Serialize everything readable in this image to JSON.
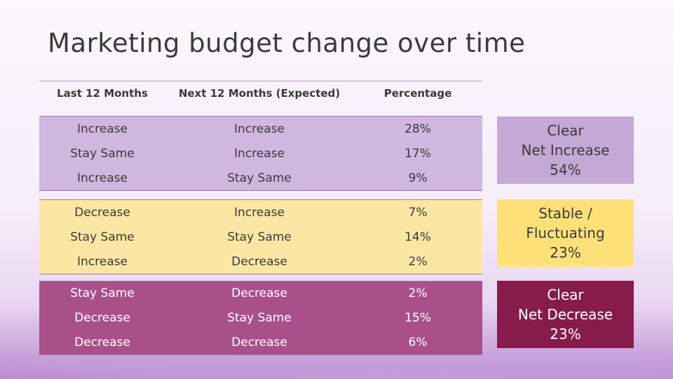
{
  "title": "Marketing budget change over time",
  "colors": {
    "increase_group": "#cfb7df",
    "stable_group": "#fbe6a4",
    "decrease_group": "#a9508a",
    "increase_box": "#c4a8d6",
    "stable_box": "#fde178",
    "decrease_box": "#871c4c"
  },
  "table": {
    "headers": [
      "Last 12 Months",
      "Next 12 Months (Expected)",
      "Percentage"
    ],
    "groups": [
      {
        "rows": [
          [
            "Increase",
            "Increase",
            "28%"
          ],
          [
            "Stay Same",
            "Increase",
            "17%"
          ],
          [
            "Increase",
            "Stay Same",
            "9%"
          ]
        ]
      },
      {
        "rows": [
          [
            "Decrease",
            "Increase",
            "7%"
          ],
          [
            "Stay Same",
            "Stay Same",
            "14%"
          ],
          [
            "Increase",
            "Decrease",
            "2%"
          ]
        ]
      },
      {
        "rows": [
          [
            "Stay Same",
            "Decrease",
            "2%"
          ],
          [
            "Decrease",
            "Stay Same",
            "15%"
          ],
          [
            "Decrease",
            "Decrease",
            "6%"
          ]
        ]
      }
    ]
  },
  "summary": [
    {
      "lines": [
        "Clear",
        "Net Increase",
        "54%"
      ]
    },
    {
      "lines": [
        "Stable /",
        "Fluctuating",
        "23%"
      ]
    },
    {
      "lines": [
        "Clear",
        "Net Decrease",
        "23%"
      ]
    }
  ]
}
